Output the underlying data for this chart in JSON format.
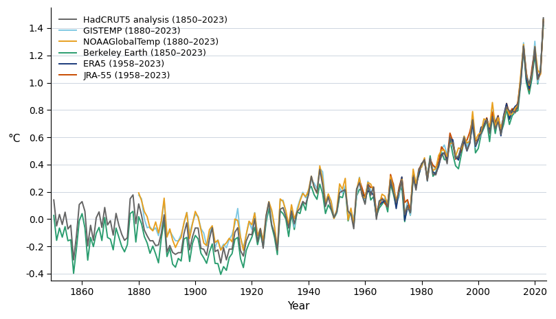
{
  "title": "",
  "xlabel": "Year",
  "ylabel": "°C",
  "xlim": [
    1849,
    2024
  ],
  "ylim": [
    -0.45,
    1.55
  ],
  "yticks": [
    -0.4,
    -0.2,
    0.0,
    0.2,
    0.4,
    0.6,
    0.8,
    1.0,
    1.2,
    1.4
  ],
  "xticks": [
    1860,
    1880,
    1900,
    1920,
    1940,
    1960,
    1980,
    2000,
    2020
  ],
  "background_color": "#ffffff",
  "grid_color": "#cdd5e0",
  "series": [
    {
      "label": "HadCRUT5 analysis (1850–2023)",
      "color": "#636363",
      "linewidth": 1.4,
      "zorder": 5
    },
    {
      "label": "NOAAGlobalTemp (1880–2023)",
      "color": "#e8a020",
      "linewidth": 1.4,
      "zorder": 4
    },
    {
      "label": "GISTEMP (1880–2023)",
      "color": "#7ec8e3",
      "linewidth": 1.4,
      "zorder": 3
    },
    {
      "label": "Berkeley Earth (1850–2023)",
      "color": "#2a9d6f",
      "linewidth": 1.4,
      "zorder": 3
    },
    {
      "label": "JRA-55 (1958–2023)",
      "color": "#c84b00",
      "linewidth": 1.4,
      "zorder": 3
    },
    {
      "label": "ERA5 (1958–2023)",
      "color": "#1a3a7a",
      "linewidth": 1.4,
      "zorder": 3
    }
  ],
  "legend_loc": "upper left",
  "legend_fontsize": 9.2
}
